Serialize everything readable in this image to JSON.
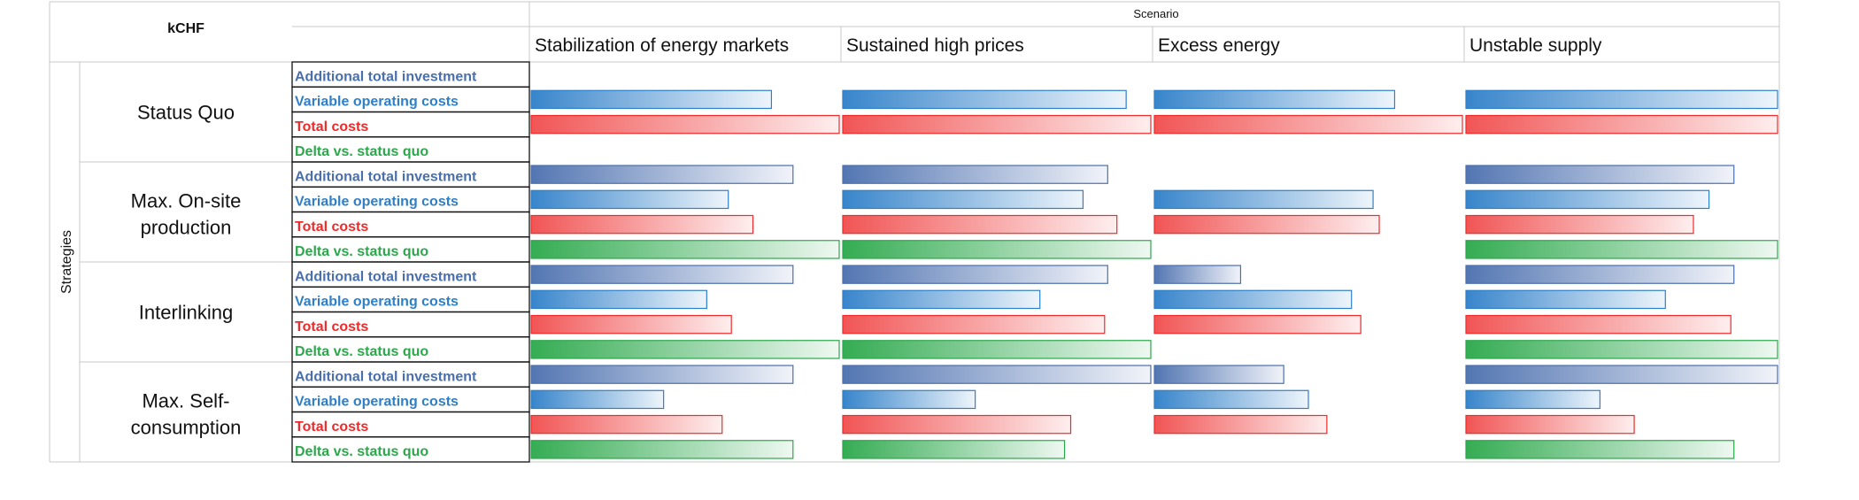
{
  "chart_data": {
    "type": "bar",
    "corner_label": "kCHF",
    "column_group_label": "Scenario",
    "row_group_label": "Strategies",
    "scenarios": [
      "Stabilization of energy markets",
      "Sustained high prices",
      "Excess energy",
      "Unstable supply"
    ],
    "metrics": [
      {
        "label": "Additional total investment",
        "color": "#4a6fae"
      },
      {
        "label": "Variable operating costs",
        "color": "#2e7fc8"
      },
      {
        "label": "Total costs",
        "color": "#ee2a2a"
      },
      {
        "label": "Delta vs. status quo",
        "color": "#2aa84a"
      }
    ],
    "strategies": [
      {
        "name_lines": [
          "Status Quo"
        ],
        "values": [
          [
            0,
            0,
            0,
            0
          ],
          [
            0.78,
            0.92,
            0.78,
            1.0
          ],
          [
            1.0,
            1.0,
            1.0,
            1.0
          ],
          [
            0,
            0,
            0,
            0
          ]
        ]
      },
      {
        "name_lines": [
          "Max. On-site",
          "production"
        ],
        "values": [
          [
            0.85,
            0.86,
            0,
            0.86
          ],
          [
            0.64,
            0.78,
            0.71,
            0.78
          ],
          [
            0.72,
            0.89,
            0.73,
            0.73
          ],
          [
            1.0,
            1.0,
            0,
            1.0
          ]
        ]
      },
      {
        "name_lines": [
          "Interlinking"
        ],
        "values": [
          [
            0.85,
            0.86,
            0.28,
            0.86
          ],
          [
            0.57,
            0.64,
            0.64,
            0.64
          ],
          [
            0.65,
            0.85,
            0.67,
            0.85
          ],
          [
            1.0,
            1.0,
            0,
            1.0
          ]
        ]
      },
      {
        "name_lines": [
          "Max. Self-",
          "consumption"
        ],
        "values": [
          [
            0.85,
            1.0,
            0.42,
            1.0
          ],
          [
            0.43,
            0.43,
            0.5,
            0.43
          ],
          [
            0.62,
            0.74,
            0.56,
            0.54
          ],
          [
            0.85,
            0.72,
            0,
            0.86
          ]
        ]
      }
    ]
  }
}
